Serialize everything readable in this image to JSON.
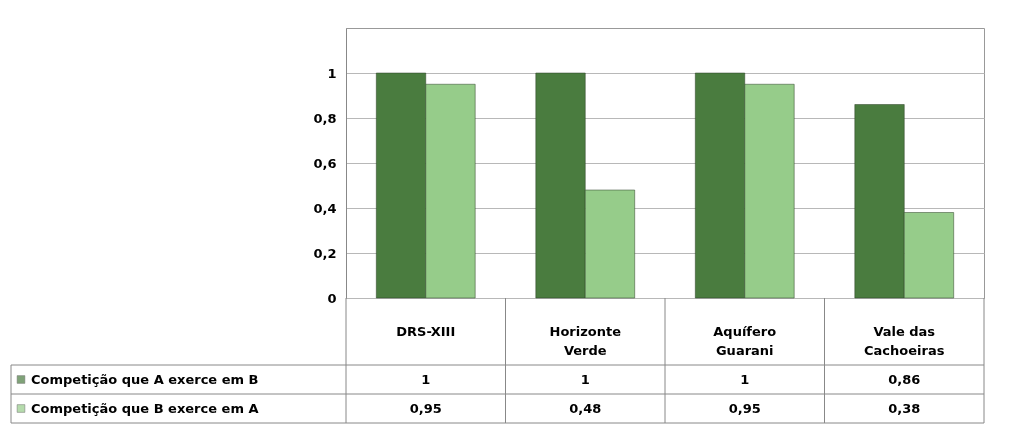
{
  "chart_data": {
    "type": "bar",
    "categories": [
      "DRS-XIII",
      "Horizonte Verde",
      "Aquífero Guarani",
      "Vale das Cachoeiras"
    ],
    "series": [
      {
        "name": "Competição que A exerce em B",
        "color": "#4a7c3f",
        "values": [
          1,
          1,
          1,
          0.86
        ],
        "value_labels": [
          "1",
          "1",
          "1",
          "0,86"
        ]
      },
      {
        "name": "Competição que B exerce em A",
        "color": "#96cc8a",
        "values": [
          0.95,
          0.48,
          0.95,
          0.38
        ],
        "value_labels": [
          "0,95",
          "0,48",
          "0,95",
          "0,38"
        ]
      }
    ],
    "ylim": [
      0,
      1.2
    ],
    "yticks": [
      0,
      {
        "value": 0.2,
        "label": "0,2"
      },
      {
        "value": 0.4,
        "label": "0,4"
      },
      {
        "value": 0.6,
        "label": "0,6"
      },
      {
        "value": 0.8,
        "label": "0,8"
      },
      1
    ],
    "grid": "y",
    "legend": "bottom"
  }
}
